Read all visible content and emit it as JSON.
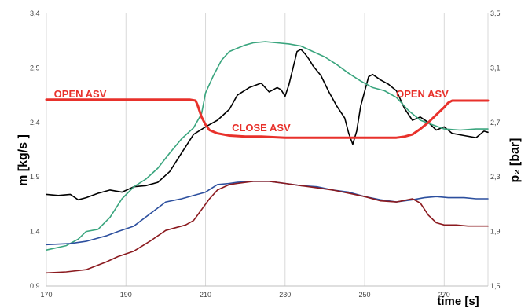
{
  "chart_data": {
    "type": "line",
    "xlabel": "time  [s]",
    "ylabel_left": "m  [kg/s ]",
    "ylabel_right": "p₂ [bar]",
    "x_ticks": [
      "170",
      "190",
      "210",
      "230",
      "250",
      "270"
    ],
    "y_left_ticks": [
      "0,9",
      "1,4",
      "1,9",
      "2,4",
      "2,9",
      "3,4"
    ],
    "y_right_ticks": [
      "1,5",
      "1,9",
      "2,3",
      "2,7",
      "3,1",
      "3,5"
    ],
    "xlim": [
      170,
      281
    ],
    "ylim_left": [
      0.9,
      3.4
    ],
    "ylim_right": [
      1.5,
      3.5
    ],
    "grid": "vertical",
    "colors": {
      "black": "#000000",
      "green": "#3aa57e",
      "blue": "#2c4f9e",
      "darkred": "#8b1a1f",
      "red": "#e8312b",
      "grid": "#d9d9d9",
      "annotation": "#e8312b"
    },
    "annotations": [
      {
        "text": "OPEN  ASV",
        "x": 178.5,
        "y": 2.63
      },
      {
        "text": "CLOSE  ASV",
        "x": 224,
        "y": 2.32
      },
      {
        "text": "OPEN  ASV",
        "x": 264.5,
        "y": 2.63
      }
    ],
    "series": [
      {
        "color": "black",
        "axis": "left",
        "x": [
          170,
          173,
          176,
          178,
          180,
          183,
          186,
          189,
          192,
          195,
          198,
          201,
          204,
          207,
          210,
          213,
          216,
          218,
          221,
          224,
          226,
          228,
          229,
          230,
          231,
          233,
          234,
          235,
          236,
          237,
          239,
          241,
          243,
          245,
          246,
          247,
          248,
          249,
          251,
          252,
          254,
          256,
          258,
          260,
          262,
          264,
          266,
          268,
          270,
          272,
          275,
          278,
          280,
          281
        ],
        "y": [
          1.74,
          1.73,
          1.74,
          1.69,
          1.71,
          1.75,
          1.78,
          1.76,
          1.81,
          1.82,
          1.85,
          1.95,
          2.12,
          2.29,
          2.36,
          2.42,
          2.52,
          2.65,
          2.72,
          2.76,
          2.68,
          2.72,
          2.7,
          2.64,
          2.75,
          3.05,
          3.07,
          3.03,
          2.98,
          2.92,
          2.83,
          2.68,
          2.55,
          2.44,
          2.3,
          2.2,
          2.32,
          2.55,
          2.82,
          2.84,
          2.79,
          2.75,
          2.69,
          2.53,
          2.42,
          2.45,
          2.4,
          2.33,
          2.36,
          2.3,
          2.28,
          2.26,
          2.32,
          2.31
        ]
      },
      {
        "color": "green",
        "axis": "left",
        "x": [
          170,
          175,
          178,
          180,
          183,
          186,
          189,
          192,
          195,
          198,
          201,
          204,
          207,
          209,
          210,
          212,
          214,
          216,
          218,
          220,
          222,
          225,
          228,
          231,
          234,
          237,
          240,
          243,
          246,
          249,
          252,
          255,
          258,
          261,
          264,
          267,
          270,
          274,
          278,
          281
        ],
        "y": [
          1.23,
          1.27,
          1.33,
          1.4,
          1.42,
          1.53,
          1.7,
          1.81,
          1.88,
          1.98,
          2.12,
          2.25,
          2.35,
          2.48,
          2.67,
          2.83,
          2.97,
          3.05,
          3.08,
          3.11,
          3.13,
          3.14,
          3.13,
          3.12,
          3.1,
          3.05,
          3.0,
          2.93,
          2.85,
          2.78,
          2.72,
          2.69,
          2.63,
          2.51,
          2.42,
          2.38,
          2.34,
          2.33,
          2.34,
          2.34
        ]
      },
      {
        "color": "blue",
        "axis": "left",
        "x": [
          170,
          176,
          180,
          185,
          188,
          192,
          196,
          200,
          204,
          208,
          210,
          213,
          216,
          218,
          222,
          226,
          230,
          234,
          238,
          242,
          246,
          250,
          254,
          258,
          262,
          265,
          268,
          271,
          275,
          278,
          281
        ],
        "y": [
          1.28,
          1.29,
          1.31,
          1.36,
          1.4,
          1.45,
          1.56,
          1.67,
          1.7,
          1.74,
          1.76,
          1.83,
          1.84,
          1.85,
          1.86,
          1.86,
          1.84,
          1.82,
          1.81,
          1.78,
          1.76,
          1.72,
          1.69,
          1.67,
          1.69,
          1.71,
          1.72,
          1.71,
          1.71,
          1.7,
          1.7
        ]
      },
      {
        "color": "darkred",
        "axis": "left",
        "x": [
          170,
          175,
          180,
          185,
          188,
          192,
          196,
          200,
          205,
          207,
          209,
          211,
          213,
          216,
          218,
          222,
          226,
          230,
          234,
          238,
          242,
          246,
          250,
          254,
          258,
          262,
          264,
          266,
          268,
          270,
          273,
          276,
          281
        ],
        "y": [
          1.02,
          1.03,
          1.05,
          1.12,
          1.17,
          1.22,
          1.31,
          1.41,
          1.46,
          1.5,
          1.6,
          1.7,
          1.78,
          1.83,
          1.84,
          1.86,
          1.86,
          1.84,
          1.82,
          1.8,
          1.78,
          1.75,
          1.72,
          1.68,
          1.67,
          1.7,
          1.66,
          1.55,
          1.48,
          1.46,
          1.46,
          1.45,
          1.45
        ]
      },
      {
        "color": "red",
        "axis": "left",
        "x": [
          170,
          178,
          186,
          194,
          202,
          206,
          207.5,
          208,
          209,
          210,
          211,
          213,
          216,
          220,
          224,
          230,
          240,
          250,
          258,
          260,
          262,
          264,
          266,
          268,
          270,
          271,
          272,
          274,
          281
        ],
        "y": [
          2.61,
          2.61,
          2.61,
          2.61,
          2.61,
          2.61,
          2.6,
          2.56,
          2.45,
          2.38,
          2.33,
          2.3,
          2.28,
          2.27,
          2.27,
          2.26,
          2.26,
          2.26,
          2.26,
          2.27,
          2.29,
          2.34,
          2.4,
          2.47,
          2.54,
          2.58,
          2.6,
          2.6,
          2.6
        ]
      }
    ]
  }
}
